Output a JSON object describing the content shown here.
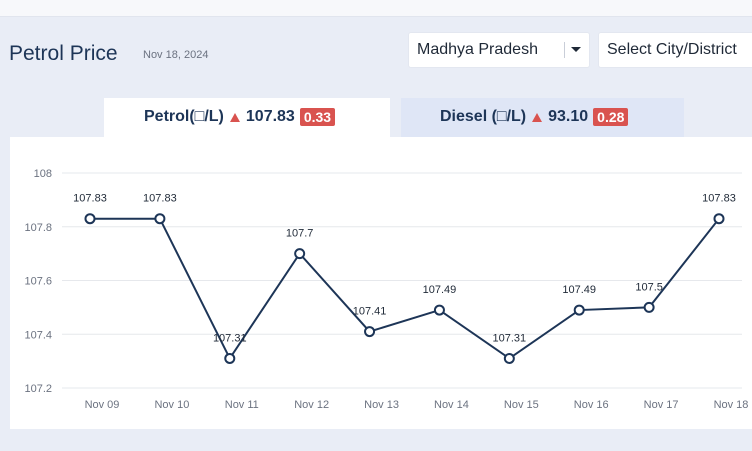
{
  "header": {
    "title": "Petrol Price",
    "date": "Nov 18, 2024",
    "state_select": "Madhya Pradesh",
    "city_select": "Select City/District"
  },
  "tabs": [
    {
      "label": "Petrol(□/L)",
      "price": "107.83",
      "change": "0.33",
      "trend": "up"
    },
    {
      "label": "Diesel (□/L)",
      "price": "93.10",
      "change": "0.28",
      "trend": "up"
    }
  ],
  "colors": {
    "line": "#1d3557",
    "badge": "#d9534f",
    "grid": "#e6e8ec"
  },
  "chart_data": {
    "type": "line",
    "categories": [
      "Nov 09",
      "Nov 10",
      "Nov 11",
      "Nov 12",
      "Nov 13",
      "Nov 14",
      "Nov 15",
      "Nov 16",
      "Nov 17",
      "Nov 18"
    ],
    "values": [
      107.83,
      107.83,
      107.31,
      107.7,
      107.41,
      107.49,
      107.31,
      107.49,
      107.5,
      107.83
    ],
    "value_labels": [
      "107.83",
      "107.83",
      "107.31",
      "107.7",
      "107.41",
      "107.49",
      "107.31",
      "107.49",
      "107.5",
      "107.83"
    ],
    "yticks": [
      "107.2",
      "107.4",
      "107.6",
      "107.8",
      "108"
    ],
    "ylim": [
      107.2,
      108
    ],
    "grid": true
  }
}
